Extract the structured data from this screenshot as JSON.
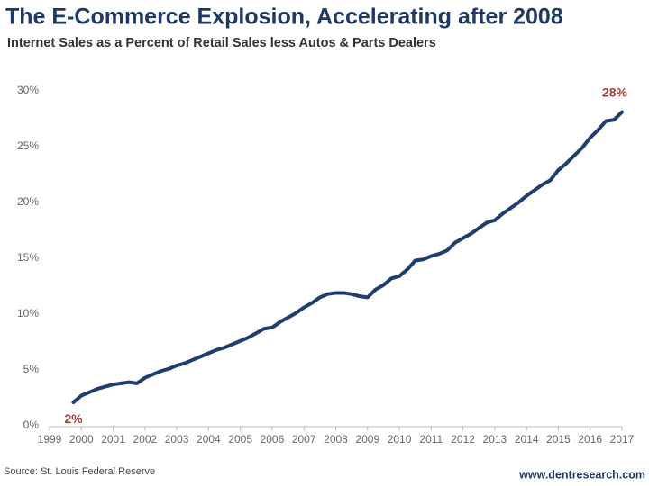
{
  "chart_data": {
    "type": "line",
    "title": "The E-Commerce Explosion, Accelerating after 2008",
    "subtitle": "Internet Sales as a Percent of Retail Sales less Autos & Parts Dealers",
    "source": "Source: St. Louis Federal Reserve",
    "website": "www.dentresearch.com",
    "x": [
      1999.75,
      2000,
      2000.25,
      2000.5,
      2000.75,
      2001,
      2001.25,
      2001.5,
      2001.75,
      2002,
      2002.25,
      2002.5,
      2002.75,
      2003,
      2003.25,
      2003.5,
      2003.75,
      2004,
      2004.25,
      2004.5,
      2004.75,
      2005,
      2005.25,
      2005.5,
      2005.75,
      2006,
      2006.25,
      2006.5,
      2006.75,
      2007,
      2007.25,
      2007.5,
      2007.75,
      2008,
      2008.25,
      2008.5,
      2008.75,
      2009,
      2009.25,
      2009.5,
      2009.75,
      2010,
      2010.25,
      2010.5,
      2010.75,
      2011,
      2011.25,
      2011.5,
      2011.75,
      2012,
      2012.25,
      2012.5,
      2012.75,
      2013,
      2013.25,
      2013.5,
      2013.75,
      2014,
      2014.25,
      2014.5,
      2014.75,
      2015,
      2015.25,
      2015.5,
      2015.75,
      2016,
      2016.25,
      2016.5,
      2016.75,
      2017
    ],
    "series": [
      {
        "name": "Internet Sales % of Retail",
        "color": "#1f3d6e",
        "values": [
          2.1,
          2.7,
          3.0,
          3.3,
          3.5,
          3.7,
          3.8,
          3.9,
          3.8,
          4.3,
          4.6,
          4.9,
          5.1,
          5.4,
          5.6,
          5.9,
          6.2,
          6.5,
          6.8,
          7.0,
          7.3,
          7.6,
          7.9,
          8.3,
          8.7,
          8.8,
          9.3,
          9.7,
          10.1,
          10.6,
          11.0,
          11.5,
          11.8,
          11.9,
          11.9,
          11.8,
          11.6,
          11.5,
          12.2,
          12.6,
          13.2,
          13.4,
          14.0,
          14.8,
          14.9,
          15.2,
          15.4,
          15.7,
          16.4,
          16.8,
          17.2,
          17.7,
          18.2,
          18.4,
          19.0,
          19.5,
          20.0,
          20.6,
          21.1,
          21.6,
          22.0,
          22.9,
          23.5,
          24.2,
          24.9,
          25.8,
          26.5,
          27.3,
          27.4,
          28.1
        ]
      }
    ],
    "annotations": [
      {
        "text": "2%",
        "x": 1999.75,
        "y": 2,
        "color": "#a0413a"
      },
      {
        "text": "28%",
        "x": 2017,
        "y": 28,
        "color": "#a0413a"
      }
    ],
    "xlim": [
      1999,
      2017
    ],
    "xticks": [
      1999,
      2000,
      2001,
      2002,
      2003,
      2004,
      2005,
      2006,
      2007,
      2008,
      2009,
      2010,
      2011,
      2012,
      2013,
      2014,
      2015,
      2016,
      2017
    ],
    "ylim": [
      0,
      30
    ],
    "yticks": [
      {
        "value": 0,
        "label": "0%"
      },
      {
        "value": 5,
        "label": "5%"
      },
      {
        "value": 10,
        "label": "10%"
      },
      {
        "value": 15,
        "label": "15%"
      },
      {
        "value": 20,
        "label": "20%"
      },
      {
        "value": 25,
        "label": "25%"
      },
      {
        "value": 30,
        "label": "30%"
      }
    ],
    "grid": false
  }
}
